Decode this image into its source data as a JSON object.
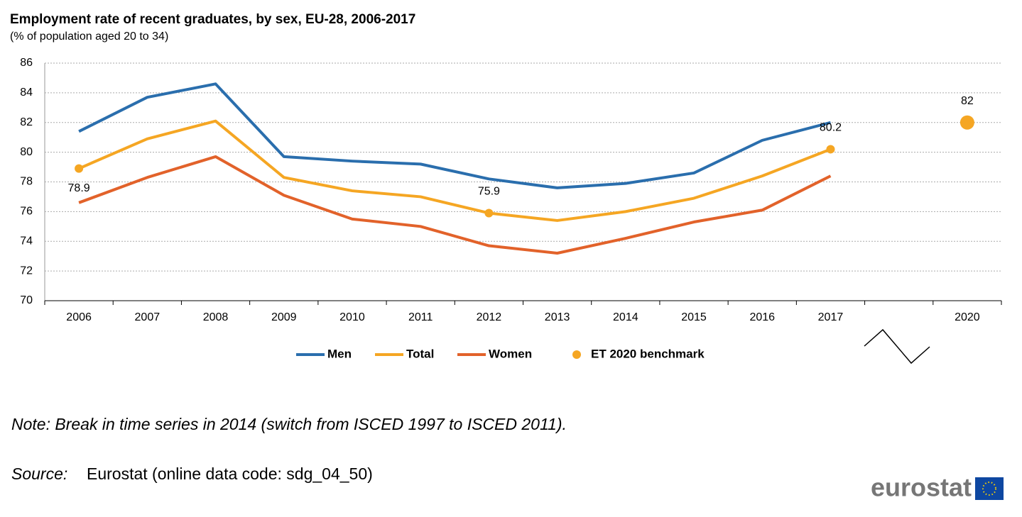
{
  "chart_data": {
    "type": "line",
    "title": "Employment rate of recent graduates, by sex, EU-28, 2006-2017",
    "subtitle": "(% of population  aged 20 to 34)",
    "categories": [
      "2006",
      "2007",
      "2008",
      "2009",
      "2010",
      "2011",
      "2012",
      "2013",
      "2014",
      "2015",
      "2016",
      "2017",
      null,
      "2020"
    ],
    "series": [
      {
        "name": "Men",
        "color": "#2a6ead",
        "values": [
          81.4,
          83.7,
          84.6,
          79.7,
          79.4,
          79.2,
          78.2,
          77.6,
          77.9,
          78.6,
          80.8,
          82.0,
          null,
          null
        ]
      },
      {
        "name": "Total",
        "color": "#f5a623",
        "values": [
          78.9,
          80.9,
          82.1,
          78.3,
          77.4,
          77.0,
          75.9,
          75.4,
          76.0,
          76.9,
          78.4,
          80.2,
          null,
          null
        ],
        "value_labels": [
          "78.9",
          null,
          null,
          null,
          null,
          null,
          "75.9",
          null,
          null,
          null,
          null,
          "80.2",
          null,
          null
        ]
      },
      {
        "name": "Women",
        "color": "#e2622a",
        "values": [
          76.6,
          78.3,
          79.7,
          77.1,
          75.5,
          75.0,
          73.7,
          73.2,
          74.2,
          75.3,
          76.1,
          78.4,
          null,
          null
        ]
      },
      {
        "name": "ET 2020 benchmark",
        "color": "#f5a623",
        "marker": "dot",
        "values": [
          null,
          null,
          null,
          null,
          null,
          null,
          null,
          null,
          null,
          null,
          null,
          null,
          null,
          82
        ],
        "value_labels": [
          null,
          null,
          null,
          null,
          null,
          null,
          null,
          null,
          null,
          null,
          null,
          null,
          null,
          "82"
        ]
      }
    ],
    "ylim": [
      70,
      86
    ],
    "yticks": [
      70,
      72,
      74,
      76,
      78,
      80,
      82,
      84,
      86
    ],
    "grid": true,
    "legend": "bottom",
    "note": "Note: Break in time series in 2014 (switch from ISCED 1997 to ISCED 2011).",
    "source_label": "Source:",
    "source": "Eurostat (online data code: sdg_04_50)",
    "logo": "eurostat"
  }
}
